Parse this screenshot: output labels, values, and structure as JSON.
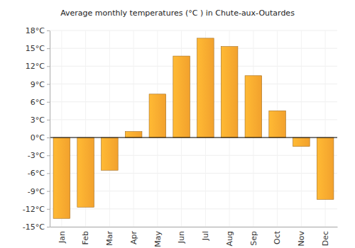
{
  "chart_data": {
    "type": "bar",
    "title": "Average monthly temperatures (°C ) in Chute-aux-Outardes",
    "categories": [
      "Jan",
      "Feb",
      "Mar",
      "Apr",
      "May",
      "Jun",
      "Jul",
      "Aug",
      "Sep",
      "Oct",
      "Nov",
      "Dec"
    ],
    "values": [
      -13.6,
      -11.7,
      -5.5,
      1.0,
      7.3,
      13.7,
      16.7,
      15.3,
      10.4,
      4.5,
      -1.5,
      -10.4
    ],
    "color": "#fba72f",
    "ylim": [
      -15,
      18
    ],
    "yticks": [
      {
        "value": -15,
        "label": "-15°C"
      },
      {
        "value": -12,
        "label": "-12°C"
      },
      {
        "value": -9,
        "label": "-9°C"
      },
      {
        "value": -6,
        "label": "-6°C"
      },
      {
        "value": -3,
        "label": "-3°C"
      },
      {
        "value": 0,
        "label": "0°C"
      },
      {
        "value": 3,
        "label": "3°C"
      },
      {
        "value": 6,
        "label": "6°C"
      },
      {
        "value": 9,
        "label": "9°C"
      },
      {
        "value": 12,
        "label": "12°C"
      },
      {
        "value": 15,
        "label": "15°C"
      },
      {
        "value": 18,
        "label": "18°C"
      }
    ],
    "grid": true
  }
}
